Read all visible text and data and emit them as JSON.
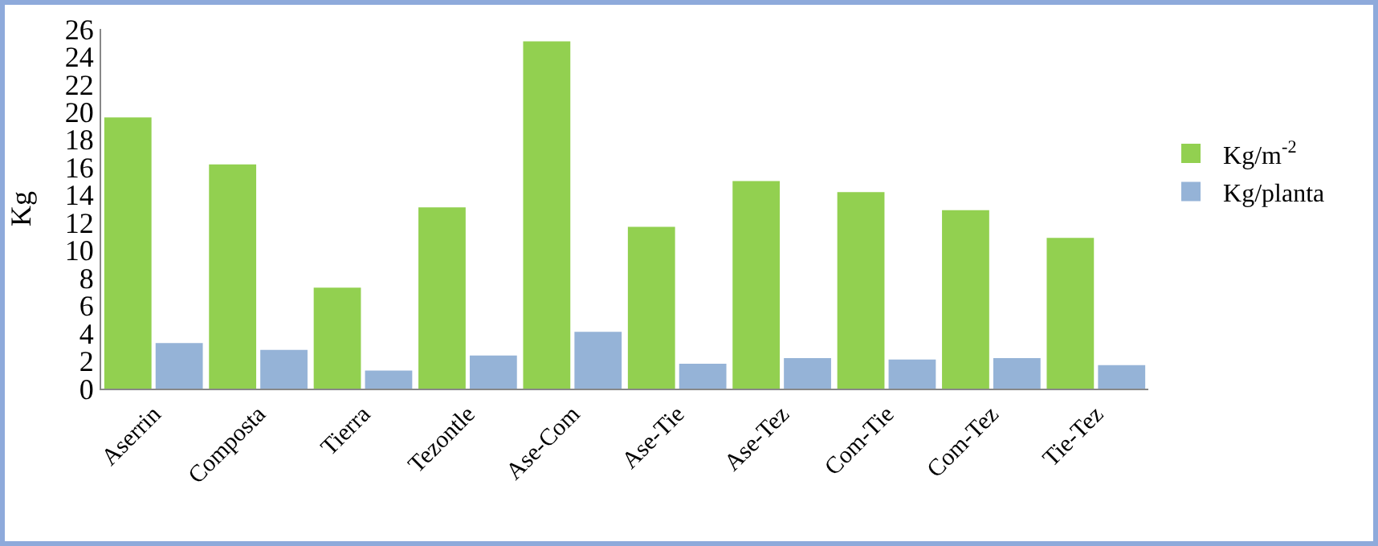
{
  "chart_data": {
    "type": "bar",
    "ylabel": "Kg",
    "categories": [
      "Aserrin",
      "Composta",
      "Tierra",
      "Tezontle",
      "Ase-Com",
      "Ase-Tie",
      "Ase-Tez",
      "Com-Tie",
      "Com-Tez",
      "Tie-Tez"
    ],
    "series": [
      {
        "name": "Kg/m$^{-2}$",
        "color": "#92d050",
        "values": [
          19.6,
          16.2,
          7.3,
          13.1,
          25.1,
          11.7,
          15.0,
          14.2,
          12.9,
          10.9
        ]
      },
      {
        "name": "Kg/planta",
        "color": "#95b3d7",
        "values": [
          3.3,
          2.8,
          1.3,
          2.4,
          4.1,
          1.8,
          2.2,
          2.1,
          2.2,
          1.7
        ]
      }
    ],
    "ylim": [
      0,
      26
    ],
    "yticks": [
      0,
      2,
      4,
      6,
      8,
      10,
      12,
      14,
      16,
      18,
      20,
      22,
      24,
      26
    ],
    "grid": false,
    "legend": "right"
  }
}
